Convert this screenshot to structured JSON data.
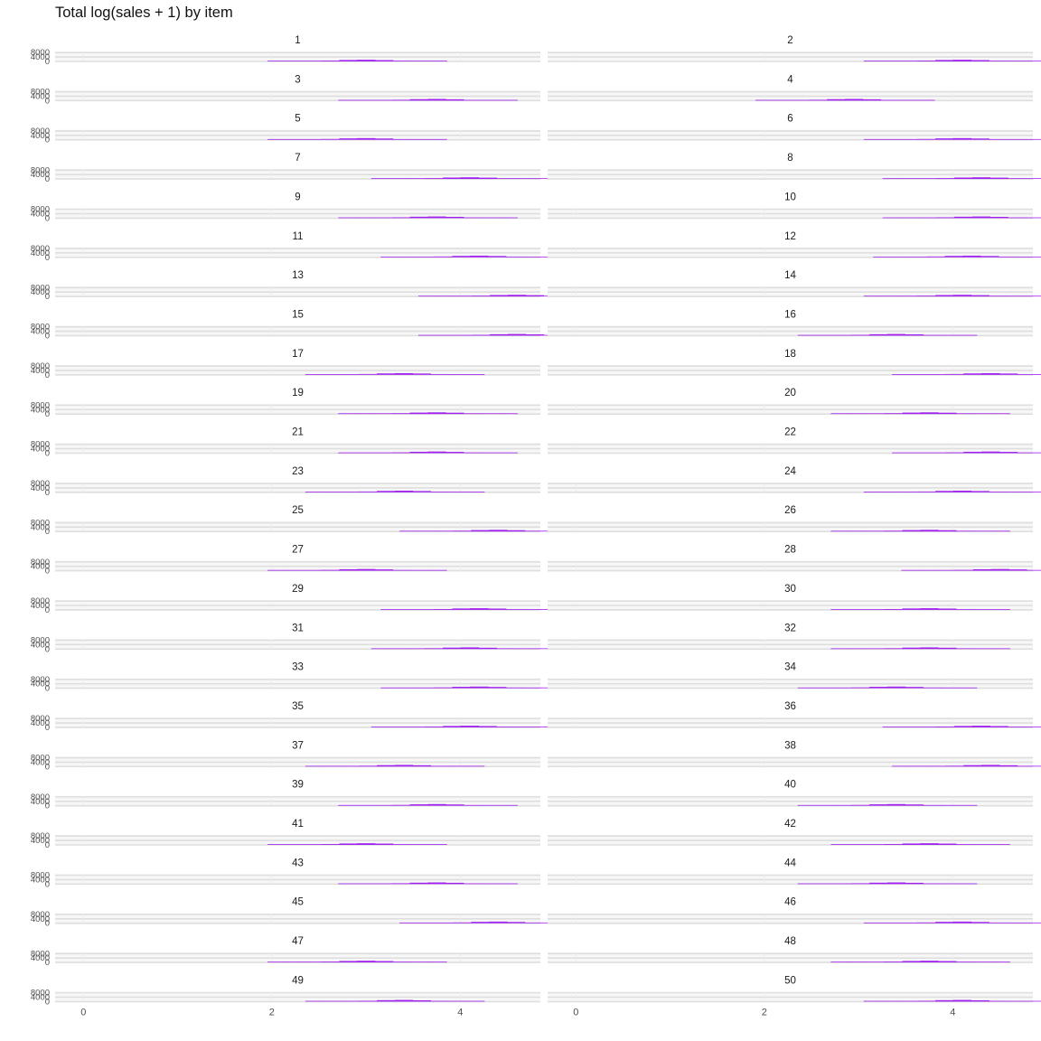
{
  "chart_data": {
    "type": "bar",
    "title": "Total log(sales + 1) by item",
    "xlabel": "",
    "ylabel": "",
    "facet_variable": "item",
    "facets": [
      "1",
      "2",
      "3",
      "4",
      "5",
      "6",
      "7",
      "8",
      "9",
      "10",
      "11",
      "12",
      "13",
      "14",
      "15",
      "16",
      "17",
      "18",
      "19",
      "20",
      "21",
      "22",
      "23",
      "24",
      "25",
      "26",
      "27",
      "28",
      "29",
      "30",
      "31",
      "32",
      "33",
      "34",
      "35",
      "36",
      "37",
      "38",
      "39",
      "40",
      "41",
      "42",
      "43",
      "44",
      "45",
      "46",
      "47",
      "48",
      "49",
      "50"
    ],
    "layout": {
      "ncol": 2,
      "nrow": 25
    },
    "xlim": [
      -0.3,
      4.85
    ],
    "x_ticks": [
      0,
      2,
      4
    ],
    "x_tick_labels": [
      "0",
      "2",
      "4"
    ],
    "y_ticks": [
      0,
      4000,
      8000
    ],
    "y_tick_labels": [
      "0",
      "4000",
      "8000"
    ],
    "bin_width": 0.19,
    "bin_shape": [
      0.02,
      0.08,
      0.22,
      0.5,
      0.85,
      1.0,
      0.78,
      0.45,
      0.18,
      0.06
    ],
    "peak_count": 1500,
    "peak_bin_center": {
      "1": 3.0,
      "2": 4.1,
      "3": 3.75,
      "4": 2.95,
      "5": 3.0,
      "6": 4.1,
      "7": 4.1,
      "8": 4.3,
      "9": 3.75,
      "10": 4.3,
      "11": 4.2,
      "12": 4.2,
      "13": 4.6,
      "14": 4.1,
      "15": 4.6,
      "16": 3.4,
      "17": 3.4,
      "18": 4.4,
      "19": 3.75,
      "20": 3.75,
      "21": 3.75,
      "22": 4.4,
      "23": 3.4,
      "24": 4.1,
      "25": 4.4,
      "26": 3.75,
      "27": 3.0,
      "28": 4.5,
      "29": 4.2,
      "30": 3.75,
      "31": 4.1,
      "32": 3.75,
      "33": 4.2,
      "34": 3.4,
      "35": 4.1,
      "36": 4.3,
      "37": 3.4,
      "38": 4.4,
      "39": 3.75,
      "40": 3.4,
      "41": 3.0,
      "42": 3.75,
      "43": 3.75,
      "44": 3.4,
      "45": 4.4,
      "46": 4.1,
      "47": 3.0,
      "48": 3.75,
      "49": 3.4,
      "50": 4.1
    },
    "fill_color": "#a020f0",
    "grid": true,
    "legend": "none"
  }
}
